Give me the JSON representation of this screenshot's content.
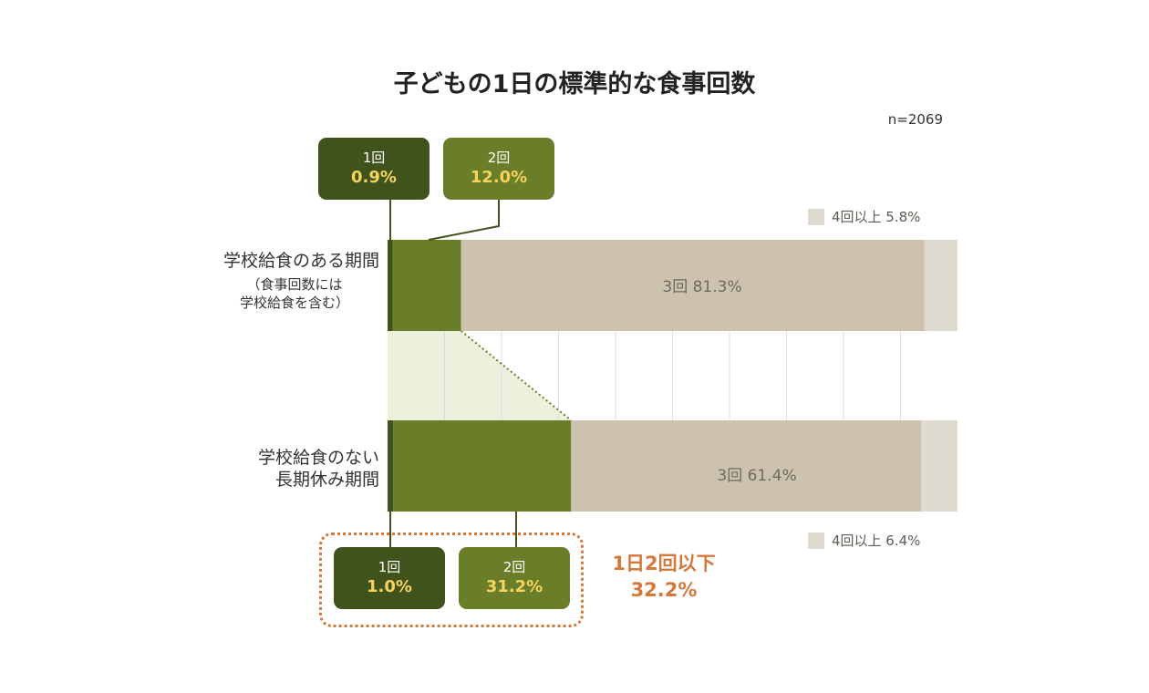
{
  "title": "子どもの1日の標準的な食事回数",
  "n": "n=2069",
  "categories": [
    {
      "main": "学校給食のある期間",
      "sub": [
        "（食事回数には",
        "学校給食を含む）"
      ]
    },
    {
      "main": "学校給食のない",
      "main2": "長期休み期間"
    }
  ],
  "top_boxes": [
    {
      "label": "1回",
      "value": "0.9%"
    },
    {
      "label": "2回",
      "value": "12.0%"
    }
  ],
  "bottom_boxes": [
    {
      "label": "1回",
      "value": "1.0%"
    },
    {
      "label": "2回",
      "value": "31.2%"
    }
  ],
  "bar_labels": [
    "3回 81.3%",
    "3回 61.4%"
  ],
  "legend_top": "4回以上 5.8%",
  "legend_bottom": "4回以上 6.4%",
  "summary": {
    "line1": "1日2回以下",
    "line2": "32.2%"
  },
  "colors": {
    "one": "#41531c",
    "two": "#6a7d28",
    "three": "#cdc2ae",
    "four": "#dedad0",
    "highlight": "#d4773b",
    "value_text": "#f5d35c",
    "shade": "#e6edd4"
  },
  "chart_data": {
    "type": "bar",
    "orientation": "horizontal",
    "stacked": true,
    "title": "子どもの1日の標準的な食事回数",
    "categories": [
      "学校給食のある期間（食事回数には学校給食を含む）",
      "学校給食のない長期休み期間"
    ],
    "series": [
      {
        "name": "1回",
        "values": [
          0.9,
          1.0
        ]
      },
      {
        "name": "2回",
        "values": [
          12.0,
          31.2
        ]
      },
      {
        "name": "3回",
        "values": [
          81.3,
          61.4
        ]
      },
      {
        "name": "4回以上",
        "values": [
          5.8,
          6.4
        ]
      }
    ],
    "xlim": [
      0,
      100
    ],
    "unit": "%",
    "grid": true,
    "annotation": "1日2回以下 32.2%"
  }
}
